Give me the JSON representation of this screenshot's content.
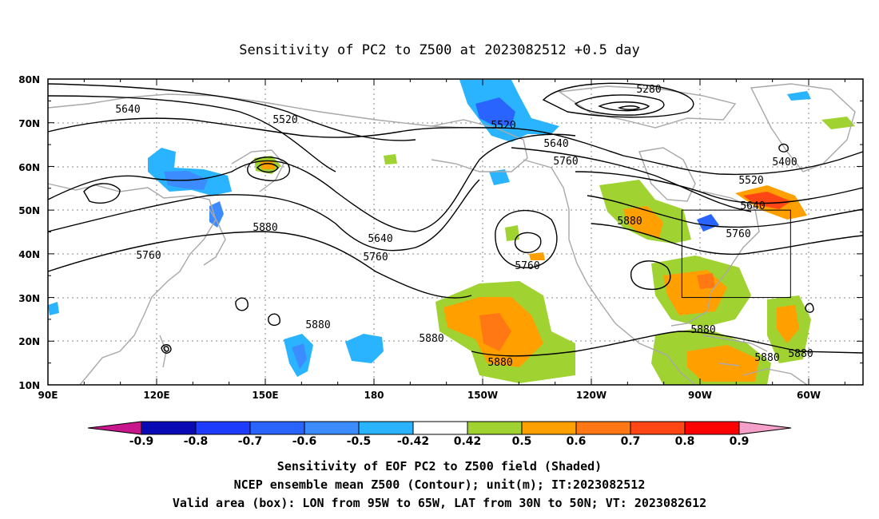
{
  "title": "Sensitivity of PC2 to Z500 at 2023082512 +0.5 day",
  "lat_ticks": [
    "80N",
    "70N",
    "60N",
    "50N",
    "40N",
    "30N",
    "20N",
    "10N"
  ],
  "lon_ticks": [
    "90E",
    "120E",
    "150E",
    "180",
    "150W",
    "120W",
    "90W",
    "60W"
  ],
  "contour_labels": [
    "5280",
    "5400",
    "5520",
    "5520",
    "5520",
    "5640",
    "5640",
    "5640",
    "5640",
    "5760",
    "5760",
    "5760",
    "5760",
    "5760",
    "5880",
    "5880",
    "5880",
    "5880",
    "5880",
    "5880",
    "5880",
    "5880"
  ],
  "colorbar": {
    "tick_labels": [
      "-0.9",
      "-0.8",
      "-0.7",
      "-0.6",
      "-0.5",
      "-0.42",
      "0.42",
      "0.5",
      "0.6",
      "0.7",
      "0.8",
      "0.9"
    ],
    "colors": [
      "#c8168c",
      "#0a0ab4",
      "#1e3cff",
      "#2a64ff",
      "#3c8cff",
      "#2ab4ff",
      "#ffffff",
      "#a0d232",
      "#ffa000",
      "#ff7814",
      "#ff4614",
      "#ff0000",
      "#f5a0c8"
    ]
  },
  "caption": [
    "Sensitivity of EOF PC2 to Z500 field (Shaded)",
    "NCEP ensemble mean Z500 (Contour); unit(m); IT:2023082512",
    "Valid area (box): LON from 95W to 65W, LAT from 30N to 50N; VT: 2023082612"
  ],
  "map": {
    "lon_range": [
      90,
      315
    ],
    "lat_range": [
      10,
      80
    ],
    "valid_box": {
      "lon": [
        265,
        295
      ],
      "lat": [
        30,
        50
      ]
    }
  }
}
